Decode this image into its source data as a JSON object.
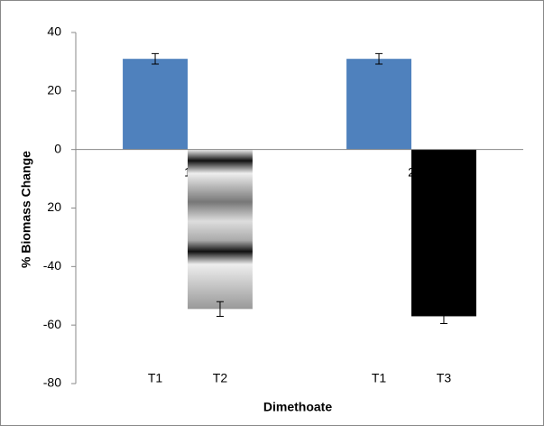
{
  "chart_data": {
    "type": "bar",
    "x_label": "Dimethoate",
    "y_label": "% Biomass Change",
    "categories": [
      "1",
      "2"
    ],
    "bar_labels": [
      [
        "T1",
        "T2"
      ],
      [
        "T1",
        "T3"
      ]
    ],
    "series": [
      {
        "color": "#4f81bd",
        "values": [
          31,
          31
        ],
        "errors": [
          1.8,
          1.8
        ]
      },
      {
        "color": "#000000",
        "values": [
          -54.5,
          -57
        ],
        "errors": [
          2.5,
          2.5
        ]
      }
    ],
    "ylim": [
      -80,
      40
    ],
    "yticks": [
      40,
      20,
      0,
      {
        "value": -20,
        "label": "20"
      },
      -40,
      -60,
      -80
    ],
    "grid": false
  }
}
